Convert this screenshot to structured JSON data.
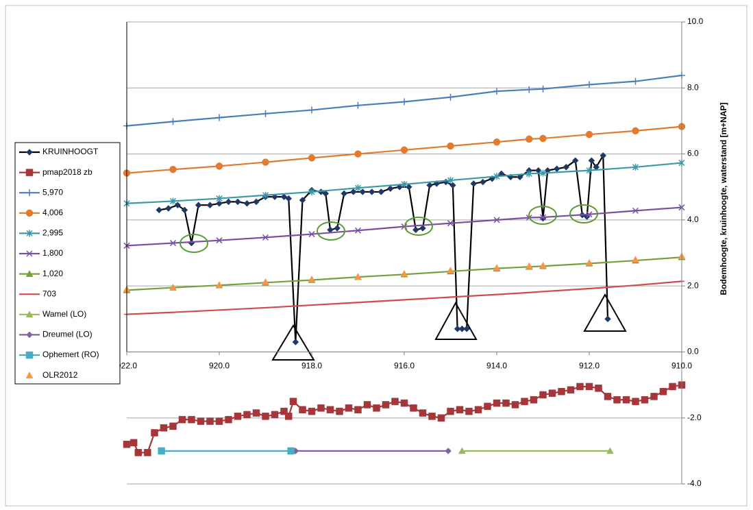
{
  "chart_data": {
    "type": "line",
    "y_label": "Bodemhoogte, kruinhoogte, waterstand [m+NAP]",
    "xlim": [
      922,
      910
    ],
    "xticks": [
      {
        "value": 922,
        "label": "922.0"
      },
      {
        "value": 920,
        "label": "920.0"
      },
      {
        "value": 918,
        "label": "918.0"
      },
      {
        "value": 916,
        "label": "916.0"
      },
      {
        "value": 914,
        "label": "914.0"
      },
      {
        "value": 912,
        "label": "912.0"
      },
      {
        "value": 910,
        "label": "910.0"
      }
    ],
    "ylim": [
      -4,
      10
    ],
    "yticks": [
      {
        "value": 10,
        "label": "10.0"
      },
      {
        "value": 8,
        "label": "8.0"
      },
      {
        "value": 6,
        "label": "6.0"
      },
      {
        "value": 4,
        "label": "4.0"
      },
      {
        "value": 2,
        "label": "2.0"
      },
      {
        "value": 0,
        "label": "0.0"
      },
      {
        "value": -2,
        "label": "-2.0"
      },
      {
        "value": -4,
        "label": "-4.0"
      }
    ],
    "grid": true,
    "legend": "left",
    "series": [
      {
        "name": "KRUINHOOGT",
        "color": "#000000",
        "marker": "diamond",
        "line": true,
        "marker_color": "#1f3864",
        "x": [
          921.3,
          921.1,
          920.9,
          920.75,
          920.6,
          920.45,
          920.2,
          920.0,
          919.8,
          919.6,
          919.4,
          919.2,
          919.0,
          918.8,
          918.6,
          918.5,
          918.35,
          918.2,
          918.0,
          917.8,
          917.7,
          917.6,
          917.45,
          917.3,
          917.1,
          916.9,
          916.7,
          916.5,
          916.3,
          916.1,
          915.9,
          915.75,
          915.6,
          915.45,
          915.3,
          915.1,
          914.95,
          914.85,
          914.75,
          914.65,
          914.5,
          914.3,
          914.1,
          913.9,
          913.7,
          913.5,
          913.3,
          913.1,
          913.0,
          912.9,
          912.7,
          912.5,
          912.3,
          912.15,
          912.05,
          911.95,
          911.85,
          911.7,
          911.6
        ],
        "values": [
          4.3,
          4.35,
          4.45,
          4.3,
          3.3,
          4.45,
          4.45,
          4.5,
          4.55,
          4.55,
          4.5,
          4.55,
          4.7,
          4.7,
          4.7,
          4.65,
          0.3,
          4.6,
          4.9,
          4.85,
          4.8,
          3.7,
          3.75,
          4.8,
          4.85,
          4.85,
          4.85,
          4.85,
          4.95,
          5.0,
          5.0,
          3.7,
          3.75,
          5.05,
          5.1,
          5.15,
          5.05,
          0.7,
          0.7,
          0.7,
          5.1,
          5.15,
          5.25,
          5.4,
          5.3,
          5.3,
          5.5,
          5.5,
          4.05,
          5.5,
          5.55,
          5.6,
          5.8,
          4.15,
          4.1,
          5.8,
          5.6,
          5.95,
          1.0
        ]
      },
      {
        "name": "pmap2018 zb",
        "color": "#a5373a",
        "marker": "square",
        "line": true,
        "x": [
          922,
          921.85,
          921.75,
          921.55,
          921.4,
          921.2,
          921.0,
          920.8,
          920.6,
          920.4,
          920.2,
          920.0,
          919.8,
          919.6,
          919.4,
          919.2,
          919.0,
          918.8,
          918.6,
          918.5,
          918.4,
          918.2,
          918.0,
          917.8,
          917.6,
          917.4,
          917.2,
          917.0,
          916.8,
          916.6,
          916.4,
          916.2,
          916.0,
          915.8,
          915.6,
          915.4,
          915.2,
          915.0,
          914.8,
          914.6,
          914.4,
          914.2,
          914.0,
          913.8,
          913.6,
          913.4,
          913.2,
          913.0,
          912.8,
          912.6,
          912.4,
          912.2,
          912.0,
          911.8,
          911.6,
          911.4,
          911.2,
          911.0,
          910.8,
          910.6,
          910.4,
          910.2,
          910.0
        ],
        "values": [
          -2.8,
          -2.75,
          -3.05,
          -3.05,
          -2.45,
          -2.3,
          -2.25,
          -2.05,
          -2.05,
          -2.1,
          -2.1,
          -2.1,
          -2.05,
          -1.95,
          -1.9,
          -1.85,
          -1.95,
          -1.9,
          -1.8,
          -1.95,
          -1.5,
          -1.75,
          -1.8,
          -1.7,
          -1.75,
          -1.8,
          -1.7,
          -1.75,
          -1.6,
          -1.7,
          -1.6,
          -1.5,
          -1.55,
          -1.7,
          -1.85,
          -1.95,
          -2.0,
          -1.8,
          -1.75,
          -1.8,
          -1.75,
          -1.65,
          -1.55,
          -1.55,
          -1.6,
          -1.5,
          -1.45,
          -1.3,
          -1.25,
          -1.2,
          -1.15,
          -1.05,
          -1.05,
          -1.1,
          -1.35,
          -1.45,
          -1.45,
          -1.5,
          -1.45,
          -1.35,
          -1.2,
          -1.05,
          -1.0
        ]
      },
      {
        "name": "5,970",
        "color": "#4a7ebb",
        "marker": "plus",
        "line": true,
        "x": [
          922,
          921,
          920,
          919,
          918,
          917,
          916,
          915,
          914,
          913.3,
          913,
          912,
          911,
          910
        ],
        "values": [
          6.85,
          6.98,
          7.1,
          7.22,
          7.33,
          7.47,
          7.58,
          7.72,
          7.9,
          7.95,
          7.97,
          8.1,
          8.2,
          8.38
        ]
      },
      {
        "name": "4,006",
        "color": "#e07b2f",
        "marker": "circle",
        "line": true,
        "x": [
          922,
          921,
          920,
          919,
          918,
          917,
          916,
          915,
          914,
          913.3,
          913,
          912,
          911,
          910
        ],
        "values": [
          5.42,
          5.53,
          5.63,
          5.75,
          5.88,
          6.0,
          6.12,
          6.24,
          6.36,
          6.45,
          6.47,
          6.59,
          6.7,
          6.83
        ]
      },
      {
        "name": "2,995",
        "color": "#3a99a8",
        "marker": "asterisk",
        "line": true,
        "x": [
          922,
          921,
          920,
          919,
          918,
          917,
          916,
          915,
          914,
          913.3,
          913,
          912,
          911,
          910
        ],
        "values": [
          4.5,
          4.57,
          4.65,
          4.75,
          4.85,
          4.97,
          5.08,
          5.2,
          5.32,
          5.4,
          5.42,
          5.5,
          5.6,
          5.73
        ]
      },
      {
        "name": "1,800",
        "color": "#7b4fa0",
        "marker": "x",
        "line": true,
        "x": [
          922,
          921,
          920,
          919,
          918,
          917,
          916,
          915,
          914,
          913.3,
          913,
          912,
          911,
          910
        ],
        "values": [
          3.22,
          3.3,
          3.38,
          3.47,
          3.57,
          3.68,
          3.8,
          3.9,
          4.0,
          4.07,
          4.08,
          4.17,
          4.28,
          4.38
        ]
      },
      {
        "name": "1,020",
        "color": "#77a03b",
        "marker": "triangle",
        "line": true,
        "x": [
          922,
          921,
          920,
          919,
          918,
          917,
          916,
          915,
          914,
          913.3,
          913,
          912,
          911,
          910
        ],
        "values": [
          1.87,
          1.95,
          2.02,
          2.1,
          2.18,
          2.27,
          2.35,
          2.44,
          2.53,
          2.58,
          2.6,
          2.68,
          2.77,
          2.87
        ]
      },
      {
        "name": "703",
        "color": "#d14b4b",
        "marker": "dash",
        "line": true,
        "x": [
          922,
          921,
          920,
          919,
          918,
          917,
          916,
          915,
          914,
          913.3,
          913,
          912,
          911,
          910
        ],
        "values": [
          1.14,
          1.2,
          1.27,
          1.34,
          1.42,
          1.5,
          1.58,
          1.66,
          1.74,
          1.8,
          1.83,
          1.92,
          2.02,
          2.14
        ]
      },
      {
        "name": "Wamel (LO)",
        "color": "#9bbb59",
        "marker": "triangle",
        "line": true,
        "x": [
          914.75,
          911.55
        ],
        "values": [
          -3.0,
          -3.0
        ]
      },
      {
        "name": "Dreumel (LO)",
        "color": "#8064a2",
        "marker": "diamond",
        "line": true,
        "x": [
          918.35,
          915.05
        ],
        "values": [
          -3.0,
          -3.0
        ]
      },
      {
        "name": "Ophemert (RO)",
        "color": "#4bacc6",
        "marker": "square",
        "line": true,
        "x": [
          921.25,
          918.45
        ],
        "values": [
          -3.0,
          -3.0
        ]
      },
      {
        "name": "OLR2012",
        "color": "#f79646",
        "marker": "triangle",
        "line": false,
        "x": [
          922,
          921,
          920,
          919,
          918,
          917,
          916,
          915,
          914,
          913.3,
          913,
          912,
          911,
          910
        ],
        "values": [
          1.9,
          1.95,
          2.03,
          2.12,
          2.2,
          2.28,
          2.37,
          2.47,
          2.55,
          2.6,
          2.62,
          2.7,
          2.8,
          2.9
        ]
      }
    ]
  }
}
